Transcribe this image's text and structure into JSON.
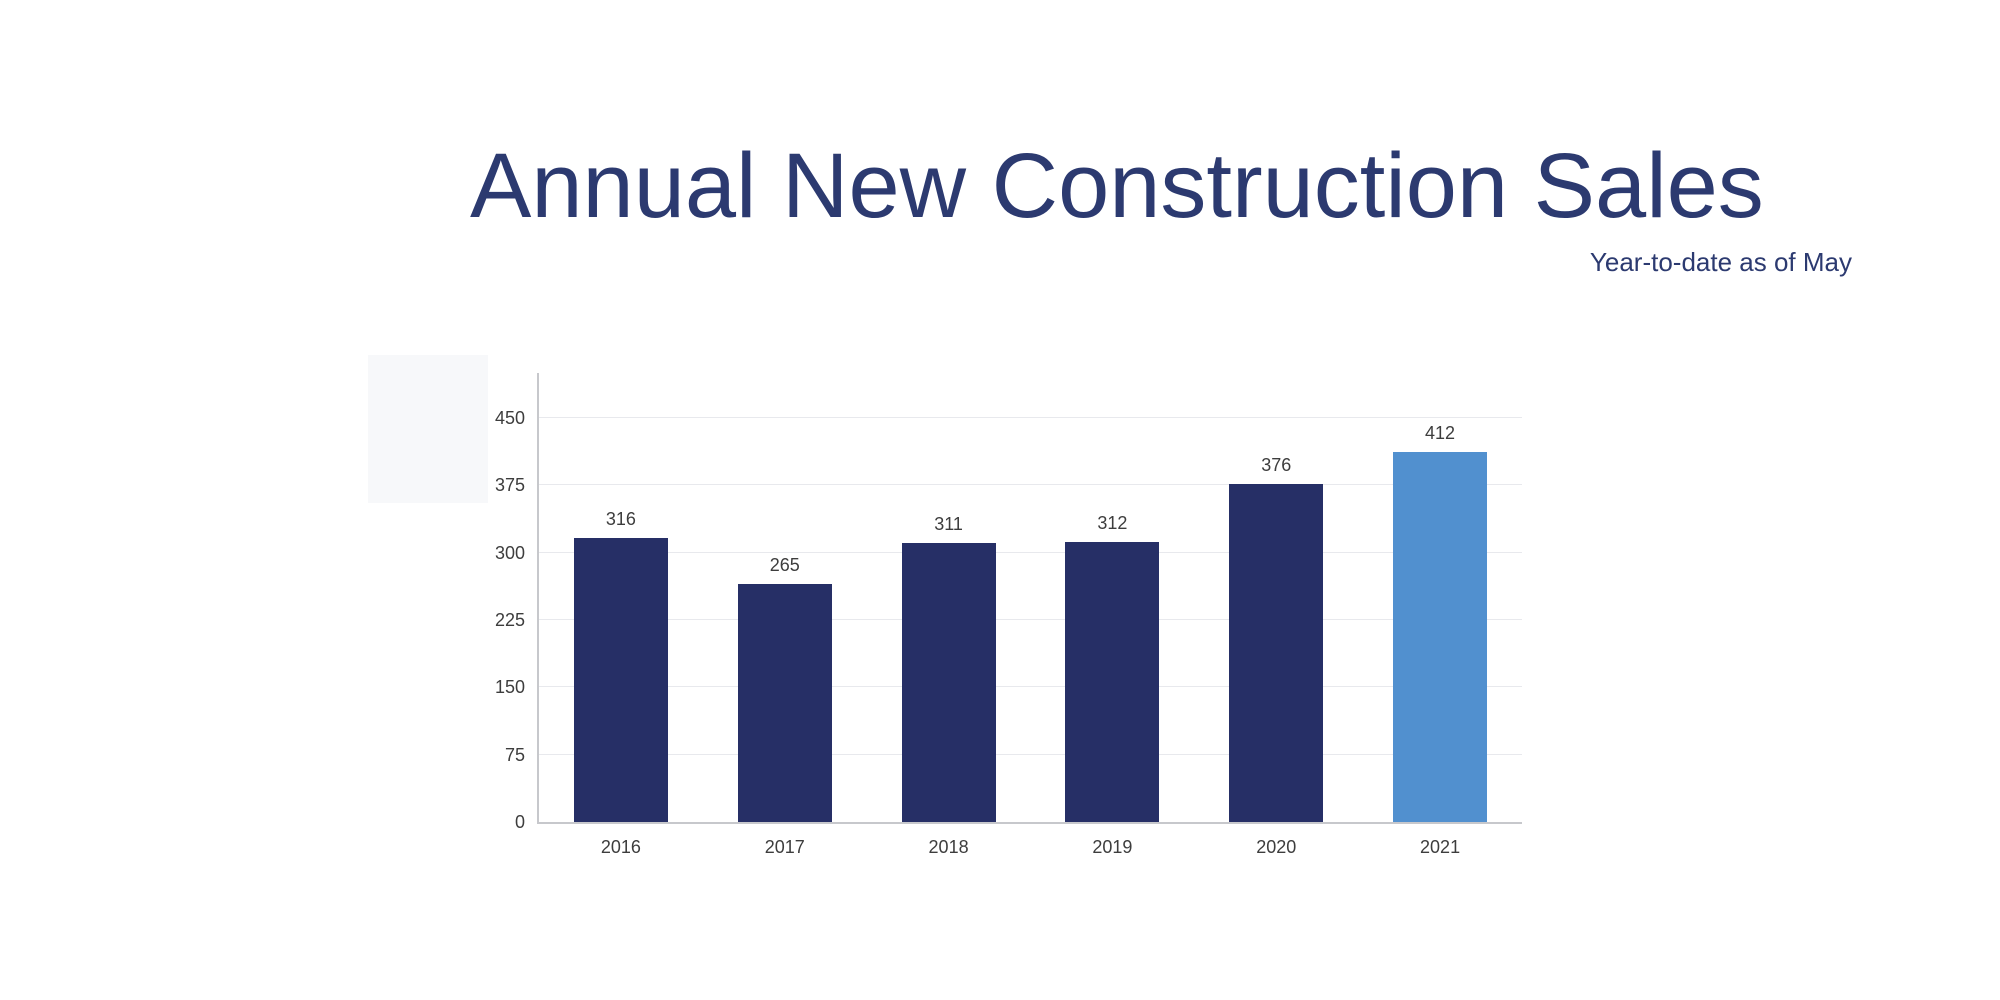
{
  "header": {
    "title": "Annual New Construction Sales",
    "subtitle": "Year-to-date as of May"
  },
  "chart_data": {
    "type": "bar",
    "title": "Annual New Construction Sales",
    "subtitle": "Year-to-date as of May",
    "categories": [
      "2016",
      "2017",
      "2018",
      "2019",
      "2020",
      "2021"
    ],
    "values": [
      316,
      265,
      311,
      312,
      376,
      412
    ],
    "value_labels": true,
    "xlabel": "",
    "ylabel": "",
    "ylim": [
      0,
      500
    ],
    "yticks": [
      0,
      75,
      150,
      225,
      300,
      375,
      450
    ],
    "grid": true,
    "legend": false,
    "highlighted_category": "2021",
    "bar_color": "#262f66",
    "highlight_color": "#5190cf"
  },
  "colors": {
    "title_text": "#2c3a70",
    "axis_label_text": "#3d3d3d",
    "gridline": "#e8e9ed",
    "axis_line": "#c7c8cc",
    "background": "#ffffff"
  }
}
